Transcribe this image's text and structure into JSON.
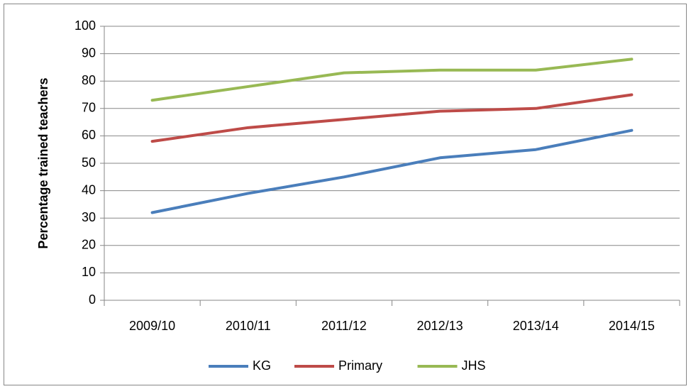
{
  "chart_data": {
    "type": "line",
    "ylabel": "Percentage trained teachers",
    "categories": [
      "2009/10",
      "2010/11",
      "2011/12",
      "2012/13",
      "2013/14",
      "2014/15"
    ],
    "series": [
      {
        "name": "KG",
        "color": "#4a7ebb",
        "values": [
          32,
          39,
          45,
          52,
          55,
          62
        ]
      },
      {
        "name": "Primary",
        "color": "#be4b48",
        "values": [
          58,
          63,
          66,
          69,
          70,
          75
        ]
      },
      {
        "name": "JHS",
        "color": "#98b954",
        "values": [
          73,
          78,
          83,
          84,
          84,
          88
        ]
      }
    ],
    "ylim": [
      0,
      100
    ],
    "yticks": [
      0,
      10,
      20,
      30,
      40,
      50,
      60,
      70,
      80,
      90,
      100
    ],
    "grid": true,
    "legend": "bottom"
  }
}
